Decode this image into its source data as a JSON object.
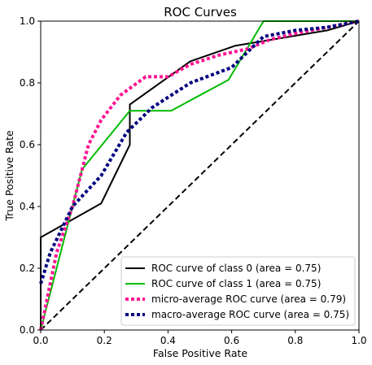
{
  "chart_data": {
    "type": "line",
    "title": "ROC Curves",
    "xlabel": "False Positive Rate",
    "ylabel": "True Positive Rate",
    "xlim": [
      0.0,
      1.0
    ],
    "ylim": [
      0.0,
      1.0
    ],
    "xticks": [
      "0.0",
      "0.2",
      "0.4",
      "0.6",
      "0.8",
      "1.0"
    ],
    "yticks": [
      "0.0",
      "0.2",
      "0.4",
      "0.6",
      "0.8",
      "1.0"
    ],
    "grid": false,
    "legend_position": "lower-right",
    "series": [
      {
        "name": "ROC curve of class 0 (area = 0.75)",
        "color": "#000000",
        "style": "solid",
        "x": [
          0.0,
          0.0,
          0.19,
          0.28,
          0.28,
          0.47,
          0.61,
          0.9,
          1.0
        ],
        "y": [
          0.0,
          0.3,
          0.41,
          0.6,
          0.73,
          0.87,
          0.92,
          0.97,
          1.0
        ]
      },
      {
        "name": "ROC curve of class 1 (area = 0.75)",
        "color": "#00bb00",
        "style": "solid",
        "x": [
          0.0,
          0.0,
          0.13,
          0.28,
          0.41,
          0.59,
          0.7,
          1.0
        ],
        "y": [
          0.0,
          0.0,
          0.52,
          0.71,
          0.71,
          0.81,
          1.0,
          1.0
        ]
      },
      {
        "name": "micro-average ROC curve (area = 0.79)",
        "color": "#ff1493",
        "style": "dotted",
        "x": [
          0.0,
          0.05,
          0.1,
          0.15,
          0.19,
          0.25,
          0.33,
          0.4,
          0.47,
          0.56,
          0.65,
          0.72,
          0.8,
          0.9,
          1.0
        ],
        "y": [
          0.0,
          0.25,
          0.4,
          0.6,
          0.68,
          0.76,
          0.82,
          0.82,
          0.86,
          0.89,
          0.91,
          0.94,
          0.96,
          0.98,
          1.0
        ]
      },
      {
        "name": "macro-average ROC curve (area = 0.75)",
        "color": "#000080",
        "style": "dotted",
        "x": [
          0.0,
          0.03,
          0.1,
          0.19,
          0.27,
          0.35,
          0.47,
          0.6,
          0.7,
          0.8,
          0.9,
          1.0
        ],
        "y": [
          0.15,
          0.25,
          0.4,
          0.5,
          0.64,
          0.72,
          0.8,
          0.85,
          0.95,
          0.97,
          0.98,
          1.0
        ]
      },
      {
        "color": "#000000",
        "style": "dashed",
        "x": [
          0.0,
          1.0
        ],
        "y": [
          0.0,
          1.0
        ]
      }
    ]
  }
}
